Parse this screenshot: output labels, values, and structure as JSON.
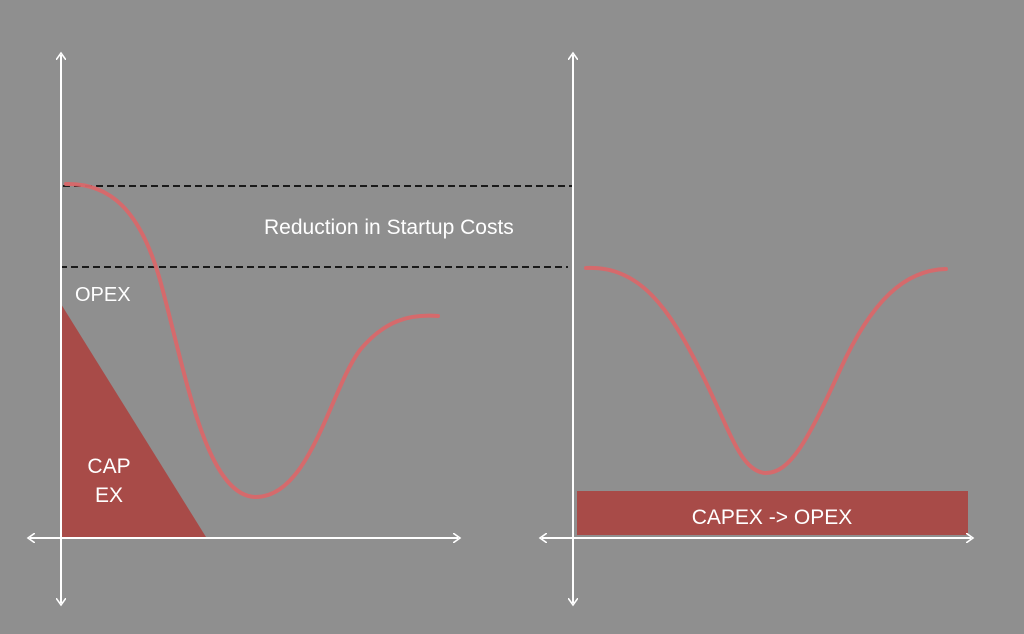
{
  "labels": {
    "reduction": "Reduction in Startup Costs",
    "opex": "OPEX",
    "capex_line1": "CAP",
    "capex_line2": "EX",
    "capex_to_opex": "CAPEX -> OPEX"
  },
  "colors": {
    "background": "#8f8f8f",
    "axis": "#ffffff",
    "curve": "#d9686a",
    "fill": "#a84b48",
    "dashed": "#1a1a1a"
  }
}
